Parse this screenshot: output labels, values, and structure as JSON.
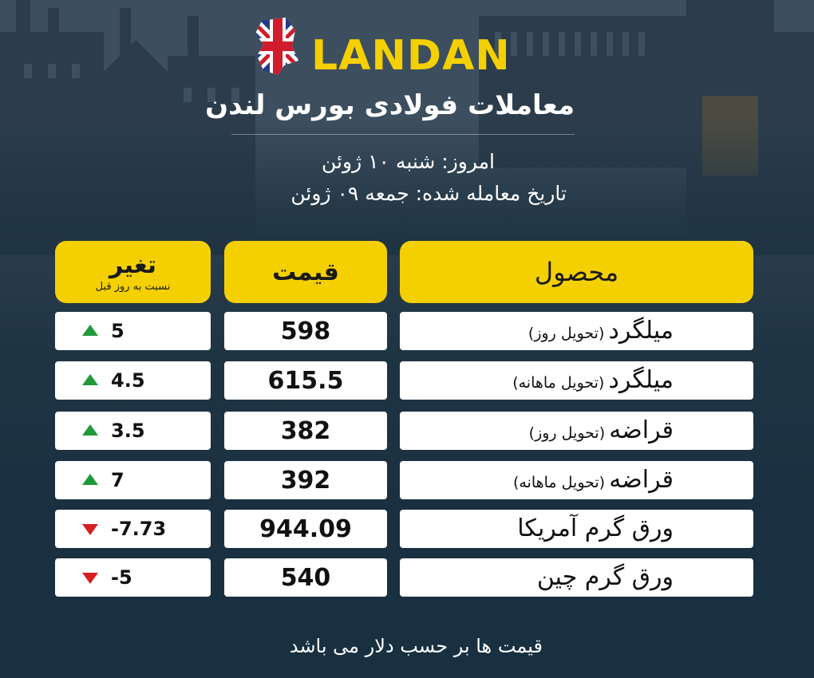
{
  "header": {
    "brand": "LANDAN",
    "title": "معاملات فولادی بورس لندن",
    "today": "امروز: شنبه ۱۰ ژوئن",
    "traded_date": "تاریخ معامله شده: جمعه ۰۹ ژوئن",
    "flag_icon": "uk-flag-icon"
  },
  "table": {
    "columns": {
      "product": "محصول",
      "price": "قیمت",
      "change": "تغیر",
      "change_sub": "نسبت به روز قبل"
    },
    "rows": [
      {
        "name": "میلگرد",
        "note": "(تحویل روز)",
        "price": "598",
        "change": "5",
        "direction": "up"
      },
      {
        "name": "میلگرد",
        "note": "(تحویل ماهانه)",
        "price": "615.5",
        "change": "4.5",
        "direction": "up"
      },
      {
        "name": "قراضه",
        "note": "(تحویل روز)",
        "price": "382",
        "change": "3.5",
        "direction": "up"
      },
      {
        "name": "قراضه",
        "note": "(تحویل ماهانه)",
        "price": "392",
        "change": "7",
        "direction": "up"
      },
      {
        "name": "ورق گرم آمریکا",
        "note": "",
        "price": "944.09",
        "change": "-7.73",
        "direction": "down"
      },
      {
        "name": "ورق گرم چین",
        "note": "",
        "price": "540",
        "change": "-5",
        "direction": "down"
      }
    ]
  },
  "footer": {
    "note": "قیمت ها بر حسب دلار می باشد"
  },
  "colors": {
    "accent_yellow": "#f5d000",
    "up_green": "#1f9a3a",
    "down_red": "#d42020",
    "background": "#1f3443"
  }
}
